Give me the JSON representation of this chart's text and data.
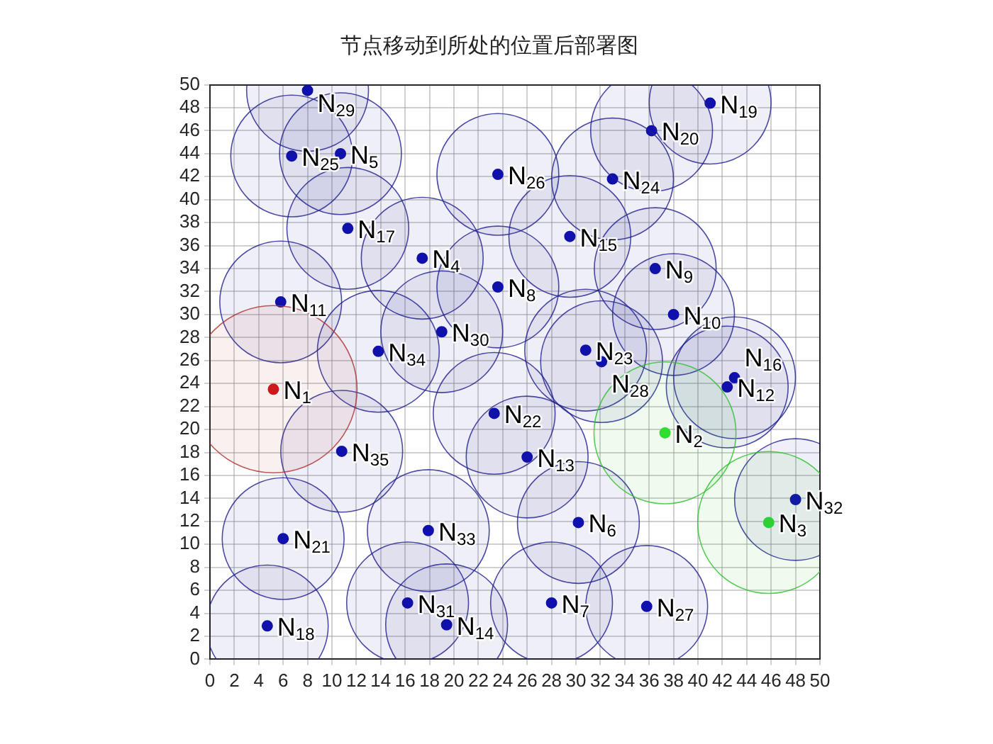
{
  "chart_data": {
    "type": "scatter",
    "title": "节点移动到所处的位置后部署图",
    "xlim": [
      0,
      50
    ],
    "xticks": [
      0,
      2,
      4,
      6,
      8,
      10,
      12,
      14,
      16,
      18,
      20,
      22,
      24,
      26,
      28,
      30,
      32,
      34,
      36,
      38,
      40,
      42,
      44,
      46,
      48,
      50
    ],
    "ylim": [
      0,
      50
    ],
    "yticks": [
      0,
      2,
      4,
      6,
      8,
      10,
      12,
      14,
      16,
      18,
      20,
      22,
      24,
      26,
      28,
      30,
      32,
      34,
      36,
      38,
      40,
      42,
      44,
      46,
      48,
      50
    ],
    "grid": true,
    "legend": false,
    "marker": "circle",
    "series": [
      {
        "type": "bubble",
        "color": "#b03030",
        "x": [
          5.2
        ],
        "values": [
          23.5
        ],
        "sizes": [
          1
        ]
      },
      {
        "type": "bubble",
        "color": "#30c030",
        "x": [
          37.3,
          45.8
        ],
        "values": [
          19.7,
          11.9
        ],
        "sizes": [
          0.72,
          0.72
        ]
      },
      {
        "type": "bubble",
        "color": "#202090",
        "x": [
          17.4,
          10.7,
          30.2,
          28.0,
          23.6,
          36.5,
          38.0,
          5.8,
          42.4,
          26.0,
          19.4,
          29.5,
          43.0,
          11.3,
          4.7,
          41.0,
          36.2,
          6.0,
          23.3,
          30.8,
          33.0,
          6.7,
          23.6,
          35.8,
          32.1,
          8.0,
          19.0,
          16.2,
          48.0,
          17.9,
          13.8,
          10.8
        ],
        "values": [
          34.9,
          44.0,
          11.9,
          4.9,
          32.4,
          34.0,
          30.0,
          31.1,
          23.7,
          17.6,
          3.0,
          36.8,
          24.5,
          37.5,
          2.9,
          48.4,
          46.0,
          10.5,
          21.4,
          26.9,
          41.8,
          43.8,
          42.2,
          4.6,
          25.9,
          49.5,
          28.5,
          4.9,
          13.9,
          11.2,
          26.8,
          18.1
        ],
        "sizes": [
          0.53,
          0.53,
          0.53,
          0.53,
          0.53,
          0.53,
          0.53,
          0.53,
          0.53,
          0.53,
          0.53,
          0.53,
          0.53,
          0.53,
          0.53,
          0.53,
          0.53,
          0.53,
          0.53,
          0.53,
          0.53,
          0.53,
          0.53,
          0.53,
          0.53,
          0.53,
          0.53,
          0.53,
          0.53,
          0.53,
          0.53,
          0.53
        ]
      },
      {
        "name": "N$_{1}$",
        "color": "#d01818",
        "x": [
          5.2
        ],
        "values": [
          23.5
        ]
      },
      {
        "name": "N$_{2}$",
        "color": "#30e030",
        "x": [
          37.3
        ],
        "values": [
          19.7
        ]
      },
      {
        "name": "N$_{3}$",
        "color": "#30e030",
        "x": [
          45.8
        ],
        "values": [
          11.9
        ]
      },
      {
        "name": "N$_{4}$",
        "color": "#1010b0",
        "x": [
          17.4
        ],
        "values": [
          34.9
        ]
      },
      {
        "name": "N$_{5}$",
        "color": "#1010b0",
        "x": [
          10.7
        ],
        "values": [
          44.0
        ]
      },
      {
        "name": "N$_{6}$",
        "color": "#1010b0",
        "x": [
          30.2
        ],
        "values": [
          11.9
        ]
      },
      {
        "name": "N$_{7}$",
        "color": "#1010b0",
        "x": [
          28.0
        ],
        "values": [
          4.9
        ]
      },
      {
        "name": "N$_{8}$",
        "color": "#1010b0",
        "x": [
          23.6
        ],
        "values": [
          32.4
        ]
      },
      {
        "name": "N$_{9}$",
        "color": "#1010b0",
        "x": [
          36.5
        ],
        "values": [
          34.0
        ]
      },
      {
        "name": "N$_{10}$",
        "color": "#1010b0",
        "x": [
          38.0
        ],
        "values": [
          30.0
        ]
      },
      {
        "name": "N$_{11}$",
        "color": "#1010b0",
        "x": [
          5.8
        ],
        "values": [
          31.1
        ]
      },
      {
        "name": "N$_{12}$",
        "color": "#1010b0",
        "x": [
          42.4
        ],
        "values": [
          23.7
        ]
      },
      {
        "name": "N$_{13}$",
        "color": "#1010b0",
        "x": [
          26.0
        ],
        "values": [
          17.6
        ]
      },
      {
        "name": "N$_{14}$",
        "color": "#1010b0",
        "x": [
          19.4
        ],
        "values": [
          3.0
        ]
      },
      {
        "name": "N$_{15}$",
        "color": "#1010b0",
        "x": [
          29.5
        ],
        "values": [
          36.8
        ]
      },
      {
        "name": "N$_{16}$",
        "color": "#1010b0",
        "x": [
          43.0
        ],
        "values": [
          24.5
        ]
      },
      {
        "name": "N$_{17}$",
        "color": "#1010b0",
        "x": [
          11.3
        ],
        "values": [
          37.5
        ]
      },
      {
        "name": "N$_{18}$",
        "color": "#1010b0",
        "x": [
          4.7
        ],
        "values": [
          2.9
        ]
      },
      {
        "name": "N$_{19}$",
        "color": "#1010b0",
        "x": [
          41.0
        ],
        "values": [
          48.4
        ]
      },
      {
        "name": "N$_{20}$",
        "color": "#1010b0",
        "x": [
          36.2
        ],
        "values": [
          46.0
        ]
      },
      {
        "name": "N$_{21}$",
        "color": "#1010b0",
        "x": [
          6.0
        ],
        "values": [
          10.5
        ]
      },
      {
        "name": "N$_{22}$",
        "color": "#1010b0",
        "x": [
          23.3
        ],
        "values": [
          21.4
        ]
      },
      {
        "name": "N$_{23}$",
        "color": "#1010b0",
        "x": [
          30.8
        ],
        "values": [
          26.9
        ]
      },
      {
        "name": "N$_{24}$",
        "color": "#1010b0",
        "x": [
          33.0
        ],
        "values": [
          41.8
        ]
      },
      {
        "name": "N$_{25}$",
        "color": "#1010b0",
        "x": [
          6.7
        ],
        "values": [
          43.8
        ]
      },
      {
        "name": "N$_{26}$",
        "color": "#1010b0",
        "x": [
          23.6
        ],
        "values": [
          42.2
        ]
      },
      {
        "name": "N$_{27}$",
        "color": "#1010b0",
        "x": [
          35.8
        ],
        "values": [
          4.6
        ]
      },
      {
        "name": "N$_{28}$",
        "color": "#1010b0",
        "x": [
          32.1
        ],
        "values": [
          25.9
        ]
      },
      {
        "name": "N$_{29}$",
        "color": "#1010b0",
        "x": [
          8.0
        ],
        "values": [
          49.5
        ]
      },
      {
        "name": "N$_{30}$",
        "color": "#1010b0",
        "x": [
          19.0
        ],
        "values": [
          28.5
        ]
      },
      {
        "name": "N$_{31}$",
        "color": "#1010b0",
        "x": [
          16.2
        ],
        "values": [
          4.9
        ]
      },
      {
        "name": "N$_{32}$",
        "color": "#1010b0",
        "x": [
          48.0
        ],
        "values": [
          13.9
        ]
      },
      {
        "name": "N$_{33}$",
        "color": "#1010b0",
        "x": [
          17.9
        ],
        "values": [
          11.2
        ]
      },
      {
        "name": "N$_{34}$",
        "color": "#1010b0",
        "x": [
          13.8
        ],
        "values": [
          26.8
        ]
      },
      {
        "name": "N$_{35}$",
        "color": "#1010b0",
        "x": [
          10.8
        ],
        "values": [
          18.1
        ]
      }
    ]
  }
}
